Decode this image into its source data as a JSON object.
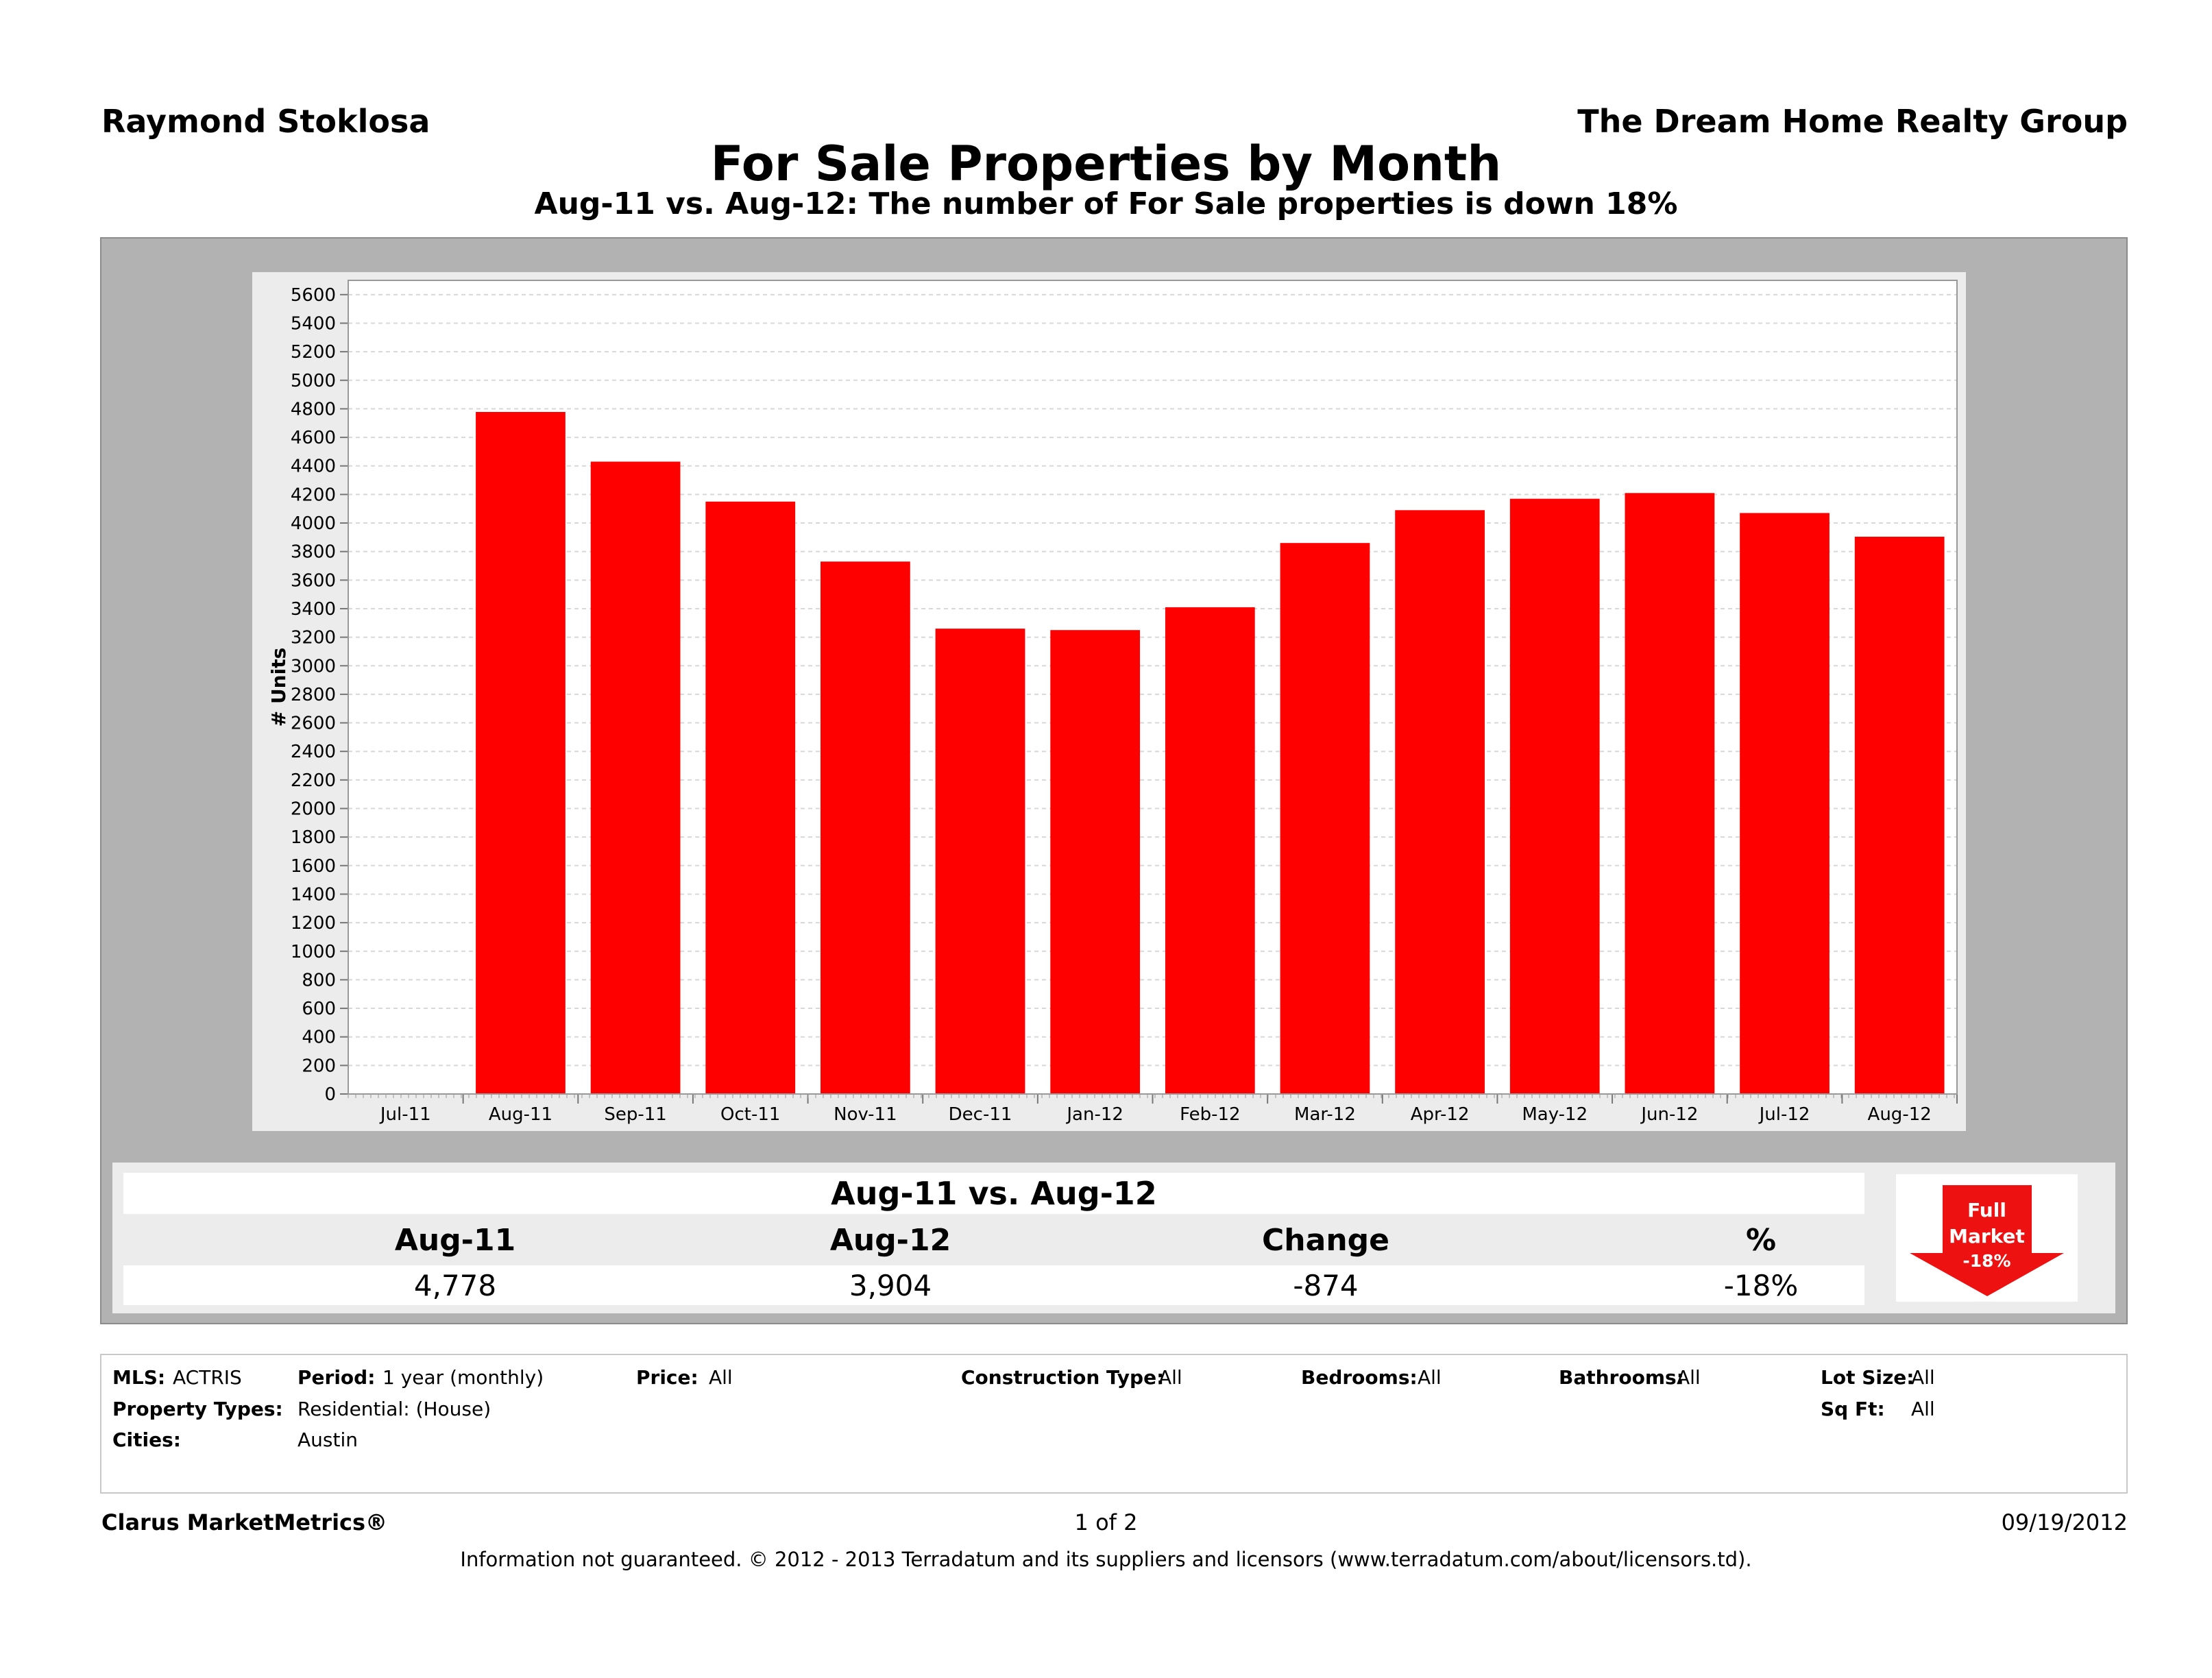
{
  "header": {
    "agent": "Raymond Stoklosa",
    "company": "The Dream Home Realty Group"
  },
  "chart_data": {
    "type": "bar",
    "title": "For Sale Properties by Month",
    "subtitle": "Aug-11 vs. Aug-12: The number of For Sale properties is down 18%",
    "ylabel": "# Units",
    "xlabel": "",
    "ylim": [
      0,
      5700
    ],
    "yticks": [
      0,
      200,
      400,
      600,
      800,
      1000,
      1200,
      1400,
      1600,
      1800,
      2000,
      2200,
      2400,
      2600,
      2800,
      3000,
      3200,
      3400,
      3600,
      3800,
      4000,
      4200,
      4400,
      4600,
      4800,
      5000,
      5200,
      5400,
      5600
    ],
    "categories": [
      "Jul-11",
      "Aug-11",
      "Sep-11",
      "Oct-11",
      "Nov-11",
      "Dec-11",
      "Jan-12",
      "Feb-12",
      "Mar-12",
      "Apr-12",
      "May-12",
      "Jun-12",
      "Jul-12",
      "Aug-12"
    ],
    "values": [
      null,
      4778,
      4430,
      4150,
      3730,
      3260,
      3250,
      3410,
      3860,
      4090,
      4170,
      4210,
      4070,
      3904
    ],
    "bar_color": "#ff0000",
    "grid": true,
    "legend": "none"
  },
  "summary": {
    "title": "Aug-11 vs. Aug-12",
    "headers": [
      "Aug-11",
      "Aug-12",
      "Change",
      "%"
    ],
    "values": [
      "4,778",
      "3,904",
      "-874",
      "-18%"
    ]
  },
  "badge": {
    "line1": "Full",
    "line2": "Market",
    "line3": "-18%",
    "color": "#ee1111"
  },
  "filters": {
    "mls_label": "MLS:",
    "mls_value": "ACTRIS",
    "period_label": "Period:",
    "period_value": "1 year (monthly)",
    "price_label": "Price:",
    "price_value": "All",
    "construction_label": "Construction Type:",
    "construction_value": "All",
    "bedrooms_label": "Bedrooms:",
    "bedrooms_value": "All",
    "bathrooms_label": "Bathrooms:",
    "bathrooms_value": "All",
    "lotsize_label": "Lot Size:",
    "lotsize_value": "All",
    "property_types_label": "Property Types:",
    "property_types_value": "Residential: (House)",
    "sqft_label": "Sq Ft:",
    "sqft_value": "All",
    "cities_label": "Cities:",
    "cities_value": "Austin"
  },
  "footer": {
    "brand": "Clarus MarketMetrics®",
    "page": "1 of 2",
    "date": "09/19/2012",
    "disclaimer": "Information not guaranteed.  © 2012 - 2013 Terradatum and its suppliers and licensors (www.terradatum.com/about/licensors.td)."
  }
}
